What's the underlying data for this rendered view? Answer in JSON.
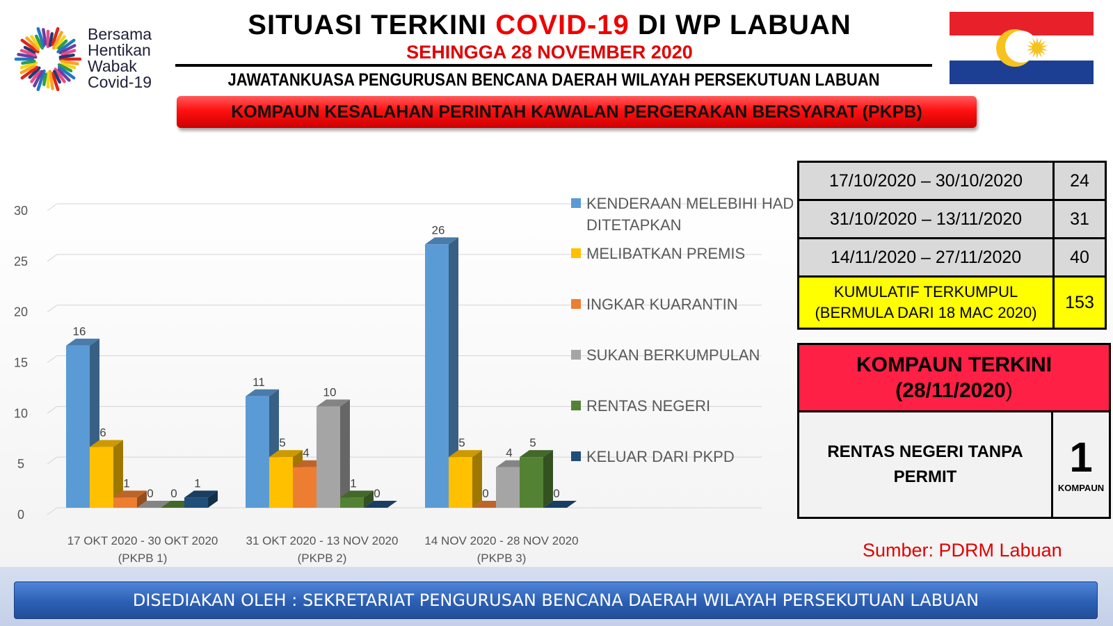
{
  "logo": {
    "lines": [
      "Bersama",
      "Hentikan",
      "Wabak",
      "Covid-19"
    ],
    "icon": "sunburst-logo-icon"
  },
  "header": {
    "title_prefix": "SITUASI TERKINI ",
    "title_highlight": "COVID-19",
    "title_suffix": " DI WP LABUAN",
    "subtitle": "SEHINGGA 28 NOVEMBER 2020",
    "committee": "JAWATANKUASA PENGURUSAN BENCANA DAERAH WILAYAH PERSEKUTUAN  LABUAN",
    "banner": "KOMPAUN KESALAHAN PERINTAH KAWALAN PERGERAKAN BERSYARAT (PKPB)",
    "flag_icon": "labuan-flag-icon",
    "colors": {
      "highlight": "#ee0000",
      "banner": "#ff1111"
    }
  },
  "chart_data": {
    "type": "bar",
    "style": "3d-clustered",
    "categories": [
      [
        "17 OKT 2020 - 30 OKT 2020",
        "(PKPB 1)"
      ],
      [
        "31 OKT 2020 - 13 NOV 2020",
        "(PKPB 2)"
      ],
      [
        "14 NOV 2020 - 28 NOV 2020",
        "(PKPB 3)"
      ]
    ],
    "series": [
      {
        "name": "KENDERAAN MELEBIHI HAD DITETAPKAN",
        "legend_lines": [
          "KENDERAAN MELEBIHI HAD",
          "DITETAPKAN"
        ],
        "color": "#5b9bd5",
        "values": [
          16,
          11,
          26
        ]
      },
      {
        "name": "MELIBATKAN PREMIS",
        "legend_lines": [
          "MELIBATKAN PREMIS"
        ],
        "color": "#ffc000",
        "values": [
          6,
          5,
          5
        ]
      },
      {
        "name": "INGKAR KUARANTIN",
        "legend_lines": [
          "INGKAR KUARANTIN"
        ],
        "color": "#ed7d31",
        "values": [
          1,
          4,
          0
        ]
      },
      {
        "name": "SUKAN BERKUMPULAN",
        "legend_lines": [
          "SUKAN BERKUMPULAN"
        ],
        "color": "#a5a5a5",
        "values": [
          0,
          10,
          4
        ]
      },
      {
        "name": "RENTAS NEGERI",
        "legend_lines": [
          "RENTAS NEGERI"
        ],
        "color": "#548235",
        "values": [
          0,
          1,
          5
        ]
      },
      {
        "name": "KELUAR DARI PKPD",
        "legend_lines": [
          "KELUAR DARI PKPD"
        ],
        "color": "#1f4e79",
        "values": [
          1,
          0,
          0
        ]
      }
    ],
    "yticks": [
      0,
      5,
      10,
      15,
      20,
      25,
      30
    ],
    "ylim": [
      0,
      30
    ],
    "grid": true,
    "legend": "right"
  },
  "period_table": {
    "rows": [
      {
        "range": "17/10/2020 – 30/10/2020",
        "count": "24"
      },
      {
        "range": "31/10/2020 – 13/11/2020",
        "count": "31"
      },
      {
        "range": "14/11/2020 – 27/11/2020",
        "count": "40"
      }
    ],
    "cumulative_line1": "KUMULATIF TERKUMPUL",
    "cumulative_line2": "(BERMULA DARI 18 MAC 2020)",
    "cumulative_count": "153"
  },
  "latest": {
    "heading_line1": "KOMPAUN TERKINI",
    "heading_line2": "(28/11/2020",
    "heading_paren": ")",
    "offense": "RENTAS NEGERI TANPA PERMIT",
    "count": "1",
    "unit": "KOMPAUN"
  },
  "source": "Sumber: PDRM Labuan",
  "footer": "DISEDIAKAN OLEH : SEKRETARIAT PENGURUSAN BENCANA DAERAH WILAYAH PERSEKUTUAN LABUAN"
}
